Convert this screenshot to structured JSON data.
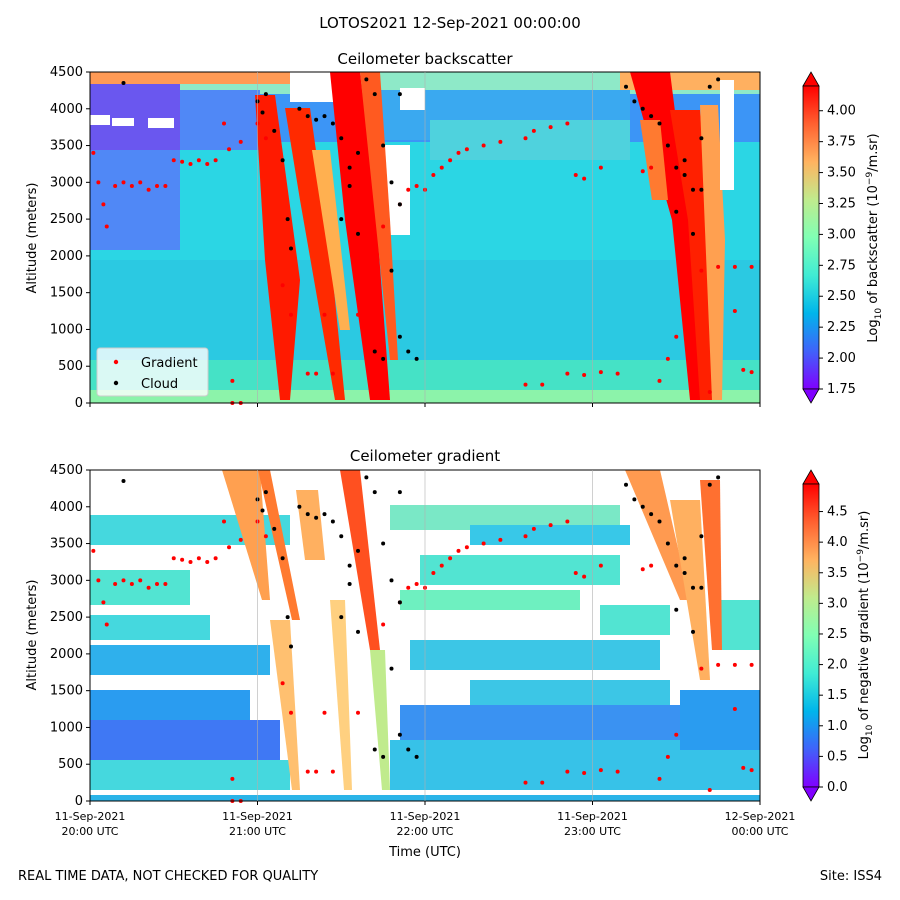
{
  "figure": {
    "suptitle": "LOTOS2021 12-Sep-2021 00:00:00",
    "footer_left": "REAL TIME DATA, NOT CHECKED FOR QUALITY",
    "footer_right": "Site: ISS4"
  },
  "chart_data": [
    {
      "type": "heatmap",
      "title": "Ceilometer backscatter",
      "ylabel": "Altitude (meters)",
      "xlabel": "",
      "ylim": [
        0,
        4500
      ],
      "yticks": [
        "0",
        "500",
        "1000",
        "1500",
        "2000",
        "2500",
        "3000",
        "3500",
        "4000",
        "4500"
      ],
      "xlim": [
        "2021-09-11T20:00",
        "2021-09-12T00:00"
      ],
      "colorbar": {
        "label_prefix": "Log",
        "label_sub": "10",
        "label_mid": " of backscatter (10",
        "label_sup": "−9",
        "label_suffix": "/m.sr)",
        "range": [
          1.75,
          4.2
        ],
        "ticks": [
          "1.75",
          "2.00",
          "2.25",
          "2.50",
          "2.75",
          "3.00",
          "3.25",
          "3.50",
          "3.75",
          "4.00"
        ],
        "colormap": "rainbow"
      },
      "legend": {
        "position": "lower-left",
        "entries": [
          {
            "name": "Gradient",
            "color": "#ff0000"
          },
          {
            "name": "Cloud",
            "color": "#000000"
          }
        ]
      },
      "series": [
        {
          "name": "Gradient",
          "color": "#ff0000",
          "points": [
            [
              20.02,
              3400
            ],
            [
              20.05,
              3000
            ],
            [
              20.08,
              2700
            ],
            [
              20.1,
              2400
            ],
            [
              20.15,
              2950
            ],
            [
              20.2,
              3000
            ],
            [
              20.25,
              2950
            ],
            [
              20.3,
              3000
            ],
            [
              20.35,
              2900
            ],
            [
              20.4,
              2950
            ],
            [
              20.45,
              2950
            ],
            [
              20.5,
              3300
            ],
            [
              20.55,
              3280
            ],
            [
              20.6,
              3250
            ],
            [
              20.65,
              3300
            ],
            [
              20.7,
              3250
            ],
            [
              20.75,
              3300
            ],
            [
              20.8,
              3800
            ],
            [
              20.83,
              3450
            ],
            [
              20.9,
              3550
            ],
            [
              21.0,
              3800
            ],
            [
              21.05,
              3600
            ],
            [
              21.15,
              1600
            ],
            [
              21.2,
              1200
            ],
            [
              21.3,
              400
            ],
            [
              21.35,
              400
            ],
            [
              21.4,
              1200
            ],
            [
              21.45,
              400
            ],
            [
              21.6,
              1200
            ],
            [
              21.75,
              2400
            ],
            [
              21.85,
              2700
            ],
            [
              21.9,
              2900
            ],
            [
              21.95,
              2950
            ],
            [
              22.0,
              2900
            ],
            [
              22.05,
              3100
            ],
            [
              22.1,
              3200
            ],
            [
              22.15,
              3300
            ],
            [
              22.2,
              3400
            ],
            [
              22.25,
              3450
            ],
            [
              22.35,
              3500
            ],
            [
              22.45,
              3550
            ],
            [
              22.6,
              3600
            ],
            [
              22.65,
              3700
            ],
            [
              22.75,
              3750
            ],
            [
              22.85,
              3800
            ],
            [
              22.9,
              3100
            ],
            [
              22.95,
              3050
            ],
            [
              23.05,
              3200
            ],
            [
              22.6,
              250
            ],
            [
              22.7,
              250
            ],
            [
              22.85,
              400
            ],
            [
              22.95,
              380
            ],
            [
              23.05,
              420
            ],
            [
              23.15,
              400
            ],
            [
              23.3,
              3150
            ],
            [
              23.35,
              3200
            ],
            [
              23.65,
              1800
            ],
            [
              23.75,
              1850
            ],
            [
              23.85,
              1850
            ],
            [
              23.95,
              1850
            ],
            [
              23.9,
              450
            ],
            [
              23.95,
              420
            ],
            [
              23.85,
              1250
            ],
            [
              23.5,
              900
            ],
            [
              23.45,
              600
            ],
            [
              23.4,
              300
            ],
            [
              23.7,
              150
            ],
            [
              20.85,
              0
            ],
            [
              20.9,
              0
            ],
            [
              20.85,
              300
            ]
          ]
        },
        {
          "name": "Cloud",
          "color": "#000000",
          "points": [
            [
              20.2,
              4350
            ],
            [
              21.0,
              4100
            ],
            [
              21.03,
              3950
            ],
            [
              21.05,
              4200
            ],
            [
              21.1,
              3700
            ],
            [
              21.15,
              3300
            ],
            [
              21.18,
              2500
            ],
            [
              21.2,
              2100
            ],
            [
              21.3,
              3900
            ],
            [
              21.35,
              3850
            ],
            [
              21.4,
              3900
            ],
            [
              21.45,
              3800
            ],
            [
              21.5,
              3600
            ],
            [
              21.55,
              2950
            ],
            [
              21.6,
              3400
            ],
            [
              21.65,
              4400
            ],
            [
              21.7,
              4200
            ],
            [
              21.75,
              3500
            ],
            [
              21.8,
              3000
            ],
            [
              21.85,
              2700
            ],
            [
              21.5,
              2500
            ],
            [
              21.55,
              3200
            ],
            [
              21.6,
              2300
            ],
            [
              21.7,
              700
            ],
            [
              21.75,
              600
            ],
            [
              21.8,
              1800
            ],
            [
              21.85,
              900
            ],
            [
              21.9,
              700
            ],
            [
              21.95,
              600
            ],
            [
              23.2,
              4300
            ],
            [
              23.25,
              4100
            ],
            [
              23.3,
              4000
            ],
            [
              23.35,
              3900
            ],
            [
              23.4,
              3800
            ],
            [
              23.45,
              3500
            ],
            [
              23.5,
              3200
            ],
            [
              23.55,
              3100
            ],
            [
              23.6,
              2900
            ],
            [
              23.65,
              3600
            ],
            [
              23.7,
              4300
            ],
            [
              23.75,
              4400
            ],
            [
              23.6,
              2300
            ],
            [
              23.65,
              2900
            ],
            [
              23.5,
              2600
            ],
            [
              23.55,
              3300
            ],
            [
              21.25,
              4000
            ],
            [
              21.85,
              4200
            ]
          ]
        }
      ]
    },
    {
      "type": "heatmap",
      "title": "Ceilometer gradient",
      "ylabel": "Altitude (meters)",
      "xlabel": "Time (UTC)",
      "ylim": [
        0,
        4500
      ],
      "yticks": [
        "0",
        "500",
        "1000",
        "1500",
        "2000",
        "2500",
        "3000",
        "3500",
        "4000",
        "4500"
      ],
      "xticks": [
        {
          "date": "11-Sep-2021",
          "time": "20:00 UTC"
        },
        {
          "date": "11-Sep-2021",
          "time": "21:00 UTC"
        },
        {
          "date": "11-Sep-2021",
          "time": "22:00 UTC"
        },
        {
          "date": "11-Sep-2021",
          "time": "23:00 UTC"
        },
        {
          "date": "12-Sep-2021",
          "time": "00:00 UTC"
        }
      ],
      "xlim": [
        "2021-09-11T20:00",
        "2021-09-12T00:00"
      ],
      "colorbar": {
        "label_prefix": "Log",
        "label_sub": "10",
        "label_mid": " of negative gradient (10",
        "label_sup": "−9",
        "label_suffix": "/m.sr)",
        "range": [
          0,
          4.95
        ],
        "ticks": [
          "0.0",
          "0.5",
          "1.0",
          "1.5",
          "2.0",
          "2.5",
          "3.0",
          "3.5",
          "4.0",
          "4.5"
        ],
        "colormap": "rainbow"
      }
    }
  ]
}
